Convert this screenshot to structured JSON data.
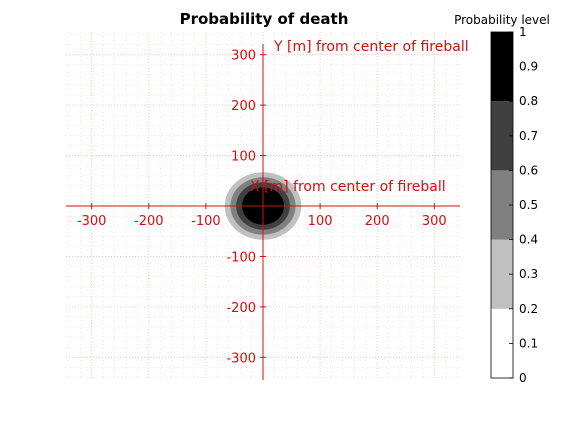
{
  "chart_data": {
    "type": "heatmap",
    "title": "Probability of death",
    "xlabel": "X [m] from center of fireball",
    "ylabel": "Y [m] from center of fireball",
    "xlim": [
      -345,
      345
    ],
    "ylim": [
      -345,
      345
    ],
    "xticks": [
      -300,
      -200,
      -100,
      100,
      200,
      300
    ],
    "yticks": [
      300,
      200,
      100,
      -100,
      -200,
      -300
    ],
    "grid": true,
    "contours": [
      {
        "level_min": 0.2,
        "level_max": 0.4,
        "radius": 67
      },
      {
        "level_min": 0.4,
        "level_max": 0.6,
        "radius": 57
      },
      {
        "level_min": 0.6,
        "level_max": 0.8,
        "radius": 47
      },
      {
        "level_min": 0.8,
        "level_max": 1.0,
        "radius": 37
      }
    ],
    "colorbar": {
      "label": "Probability level",
      "ticks": [
        1,
        0.9,
        0.8,
        0.7,
        0.6,
        0.5,
        0.4,
        0.3,
        0.2,
        0.1,
        0
      ],
      "bands": [
        {
          "from": 0.0,
          "to": 0.2,
          "color": "#ffffff"
        },
        {
          "from": 0.2,
          "to": 0.4,
          "color": "#c0c0c0"
        },
        {
          "from": 0.4,
          "to": 0.6,
          "color": "#808080"
        },
        {
          "from": 0.6,
          "to": 0.8,
          "color": "#404040"
        },
        {
          "from": 0.8,
          "to": 1.0,
          "color": "#000000"
        }
      ]
    },
    "colors": {
      "axis": "#d01010",
      "grid_major": "#f2b8b8",
      "grid_minor": "#f6dada"
    }
  }
}
